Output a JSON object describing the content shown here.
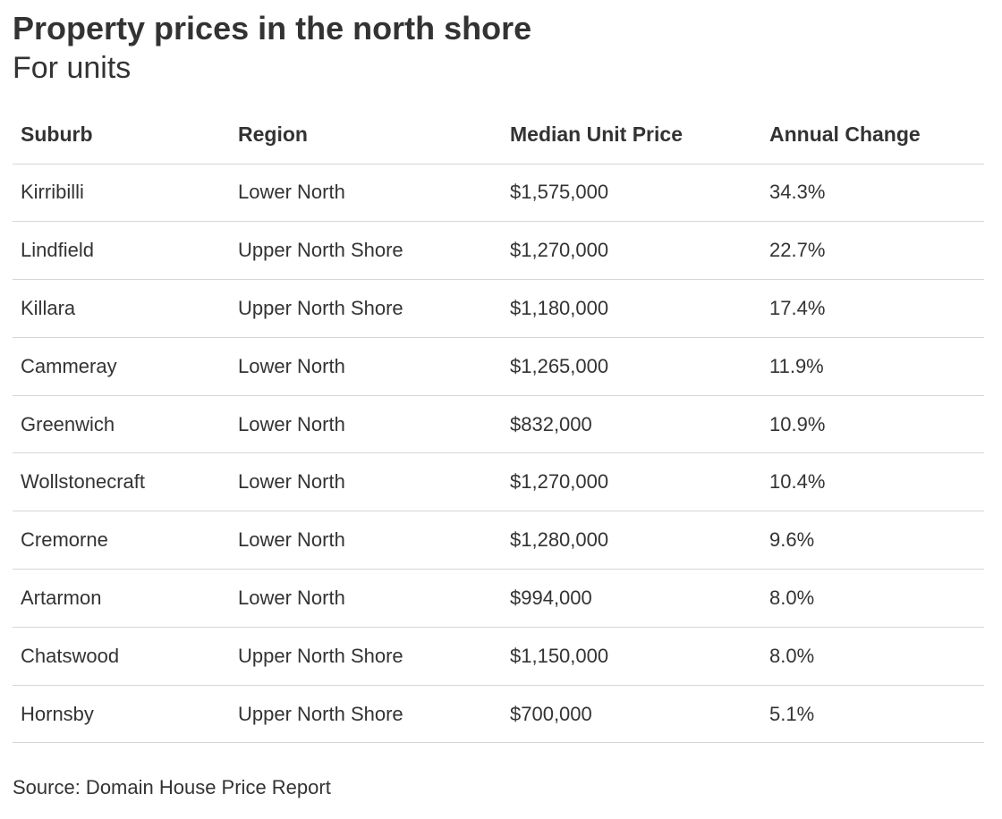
{
  "title": "Property prices in the north shore",
  "subtitle": "For units",
  "source": "Source: Domain House Price Report",
  "colors": {
    "text": "#333333",
    "rule": "#d6d6d6",
    "background": "#ffffff"
  },
  "chart_data": {
    "type": "table",
    "title": "Property prices in the north shore",
    "subtitle": "For units",
    "columns": [
      "Suburb",
      "Region",
      "Median Unit Price",
      "Annual Change"
    ],
    "rows": [
      [
        "Kirribilli",
        "Lower North",
        "$1,575,000",
        "34.3%"
      ],
      [
        "Lindfield",
        "Upper North Shore",
        "$1,270,000",
        "22.7%"
      ],
      [
        "Killara",
        "Upper North Shore",
        "$1,180,000",
        "17.4%"
      ],
      [
        "Cammeray",
        "Lower North",
        "$1,265,000",
        "11.9%"
      ],
      [
        "Greenwich",
        "Lower North",
        "$832,000",
        "10.9%"
      ],
      [
        "Wollstonecraft",
        "Lower North",
        "$1,270,000",
        "10.4%"
      ],
      [
        "Cremorne",
        "Lower North",
        "$1,280,000",
        "9.6%"
      ],
      [
        "Artarmon",
        "Lower North",
        "$994,000",
        "8.0%"
      ],
      [
        "Chatswood",
        "Upper North Shore",
        "$1,150,000",
        "8.0%"
      ],
      [
        "Hornsby",
        "Upper North Shore",
        "$700,000",
        "5.1%"
      ]
    ],
    "source": "Source: Domain House Price Report"
  }
}
